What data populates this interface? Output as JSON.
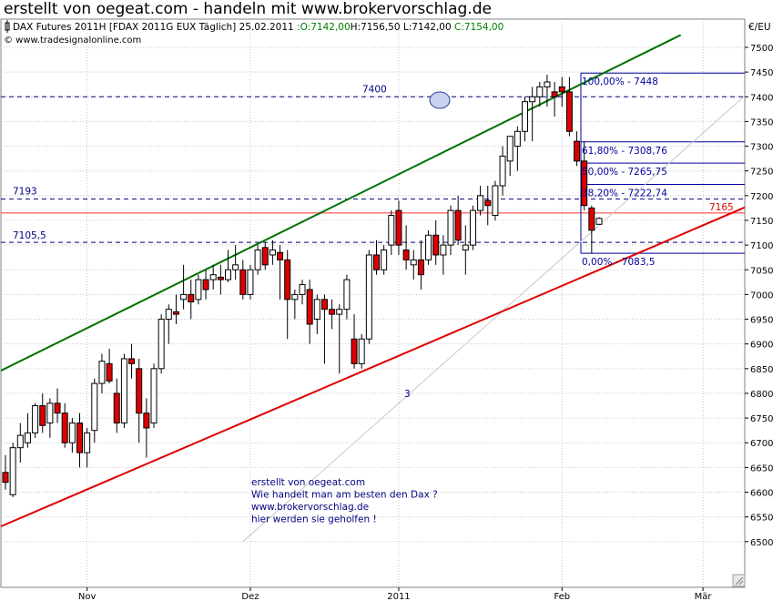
{
  "page_title": "erstellt von oegeat.com - handeln mit www.brokervorschlag.de",
  "chart_data": {
    "type": "candlestick",
    "header": "DAX Futures 2011H [FDAX 2011G EUX  Täglich] 25.02.2011",
    "ohlc_values": {
      "open": ":O:7142,00",
      "high": "H:7156,50",
      "low": "L:7142,00",
      "close": "C:7154,00"
    },
    "copyright": "© www.tradesignalonline.com",
    "currency": "€/EU",
    "ylim": [
      6480,
      7530
    ],
    "y_ticks": [
      6500,
      6550,
      6600,
      6650,
      6700,
      6750,
      6800,
      6850,
      6900,
      6950,
      7000,
      7050,
      7100,
      7150,
      7200,
      7250,
      7300,
      7350,
      7400,
      7450,
      7500
    ],
    "x_labels": [
      {
        "label": "Nov",
        "index": 11
      },
      {
        "label": "Dez",
        "index": 33
      },
      {
        "label": "2011",
        "index": 53
      },
      {
        "label": "Feb",
        "index": 75
      },
      {
        "label": "Mär",
        "index": 94
      }
    ],
    "candles": [
      [
        6640,
        6675,
        6605,
        6620
      ],
      [
        6595,
        6700,
        6590,
        6690
      ],
      [
        6690,
        6740,
        6660,
        6715
      ],
      [
        6700,
        6760,
        6690,
        6720
      ],
      [
        6720,
        6780,
        6710,
        6775
      ],
      [
        6775,
        6800,
        6720,
        6735
      ],
      [
        6740,
        6790,
        6710,
        6780
      ],
      [
        6780,
        6810,
        6740,
        6760
      ],
      [
        6760,
        6780,
        6690,
        6700
      ],
      [
        6700,
        6750,
        6680,
        6740
      ],
      [
        6740,
        6760,
        6650,
        6680
      ],
      [
        6680,
        6730,
        6650,
        6720
      ],
      [
        6725,
        6830,
        6700,
        6820
      ],
      [
        6820,
        6880,
        6800,
        6865
      ],
      [
        6860,
        6890,
        6820,
        6825
      ],
      [
        6800,
        6830,
        6720,
        6740
      ],
      [
        6740,
        6880,
        6730,
        6870
      ],
      [
        6870,
        6900,
        6830,
        6860
      ],
      [
        6850,
        6870,
        6700,
        6760
      ],
      [
        6760,
        6790,
        6670,
        6730
      ],
      [
        6740,
        6860,
        6730,
        6850
      ],
      [
        6850,
        6960,
        6840,
        6950
      ],
      [
        6950,
        6980,
        6900,
        6970
      ],
      [
        6965,
        7000,
        6940,
        6960
      ],
      [
        6990,
        7060,
        6970,
        7000
      ],
      [
        7000,
        7030,
        6950,
        6985
      ],
      [
        6990,
        7040,
        6980,
        7030
      ],
      [
        7030,
        7050,
        6990,
        7010
      ],
      [
        7030,
        7060,
        7010,
        7040
      ],
      [
        7035,
        7060,
        7000,
        7030
      ],
      [
        7030,
        7090,
        7025,
        7050
      ],
      [
        7050,
        7100,
        7030,
        7060
      ],
      [
        7050,
        7070,
        6990,
        7000
      ],
      [
        7000,
        7060,
        6990,
        7050
      ],
      [
        7050,
        7100,
        7040,
        7090
      ],
      [
        7095,
        7105,
        7050,
        7060
      ],
      [
        7080,
        7110,
        7060,
        7090
      ],
      [
        7085,
        7100,
        6990,
        7070
      ],
      [
        7070,
        7090,
        6910,
        6990
      ],
      [
        6990,
        7010,
        6950,
        7000
      ],
      [
        7000,
        7030,
        6980,
        7020
      ],
      [
        7010,
        7030,
        6900,
        6940
      ],
      [
        6950,
        7000,
        6920,
        6990
      ],
      [
        6990,
        7000,
        6860,
        6970
      ],
      [
        6970,
        6990,
        6930,
        6960
      ],
      [
        6960,
        6980,
        6840,
        6970
      ],
      [
        6970,
        7040,
        6950,
        7030
      ],
      [
        6910,
        6960,
        6850,
        6860
      ],
      [
        6860,
        6920,
        6850,
        6910
      ],
      [
        6910,
        7090,
        6900,
        7080
      ],
      [
        7080,
        7110,
        7040,
        7050
      ],
      [
        7050,
        7100,
        7040,
        7090
      ],
      [
        7100,
        7170,
        7080,
        7160
      ],
      [
        7170,
        7190,
        7080,
        7100
      ],
      [
        7090,
        7140,
        7050,
        7070
      ],
      [
        7060,
        7090,
        7030,
        7070
      ],
      [
        7070,
        7110,
        7010,
        7040
      ],
      [
        7070,
        7130,
        7060,
        7120
      ],
      [
        7120,
        7150,
        7060,
        7080
      ],
      [
        7080,
        7120,
        7040,
        7100
      ],
      [
        7100,
        7180,
        7080,
        7170
      ],
      [
        7170,
        7200,
        7100,
        7110
      ],
      [
        7090,
        7140,
        7040,
        7100
      ],
      [
        7100,
        7180,
        7090,
        7170
      ],
      [
        7170,
        7220,
        7160,
        7200
      ],
      [
        7190,
        7220,
        7140,
        7180
      ],
      [
        7160,
        7230,
        7150,
        7220
      ],
      [
        7220,
        7300,
        7200,
        7280
      ],
      [
        7270,
        7320,
        7240,
        7320
      ],
      [
        7300,
        7340,
        7250,
        7330
      ],
      [
        7330,
        7400,
        7310,
        7390
      ],
      [
        7390,
        7420,
        7310,
        7400
      ],
      [
        7400,
        7430,
        7380,
        7420
      ],
      [
        7420,
        7445,
        7380,
        7430
      ],
      [
        7410,
        7430,
        7360,
        7400
      ],
      [
        7420,
        7440,
        7380,
        7410
      ],
      [
        7410,
        7440,
        7320,
        7330
      ],
      [
        7310,
        7330,
        7260,
        7270
      ],
      [
        7270,
        7310,
        7170,
        7180
      ],
      [
        7175,
        7180,
        7083,
        7130
      ],
      [
        7142,
        7156.5,
        7142,
        7154
      ]
    ],
    "horizontal_lines": [
      {
        "value": 7400,
        "label": "7400"
      },
      {
        "value": 7193,
        "label": "7193"
      },
      {
        "value": 7105.5,
        "label": "7105,5"
      }
    ],
    "red_level": {
      "value": 7165,
      "label": "7165"
    },
    "fibonacci": [
      {
        "value": 7448,
        "label": "100,00% - 7448"
      },
      {
        "value": 7308.76,
        "label": "61,80% - 7308,76"
      },
      {
        "value": 7265.75,
        "label": "50,00% - 7265,75"
      },
      {
        "value": 7222.74,
        "label": "38,20% - 7222,74"
      },
      {
        "value": 7083.5,
        "label": "0,00% - 7083,5"
      }
    ],
    "channel_upper": {
      "from": [
        0,
        6845
      ],
      "to": [
        91,
        7525
      ]
    },
    "channel_lower": {
      "from": [
        0,
        6530
      ],
      "to": [
        101,
        7185
      ]
    },
    "thin_line": {
      "from": [
        32,
        6500
      ],
      "to": [
        101,
        7420
      ]
    },
    "wave_label": "3",
    "note_lines": [
      "erstellt von oegeat.com",
      "Wie handelt man am besten den Dax ?",
      "www.brokervorschlag.de",
      "hier werden sie geholfen !"
    ],
    "colors": {
      "up": "#ffffff",
      "down": "#dd0000",
      "upper_channel": "#007000",
      "lower_channel": "#e00000",
      "fib": "#0000a0",
      "dash": "#000080",
      "note": "#000080",
      "ohlc": "#008000"
    }
  }
}
